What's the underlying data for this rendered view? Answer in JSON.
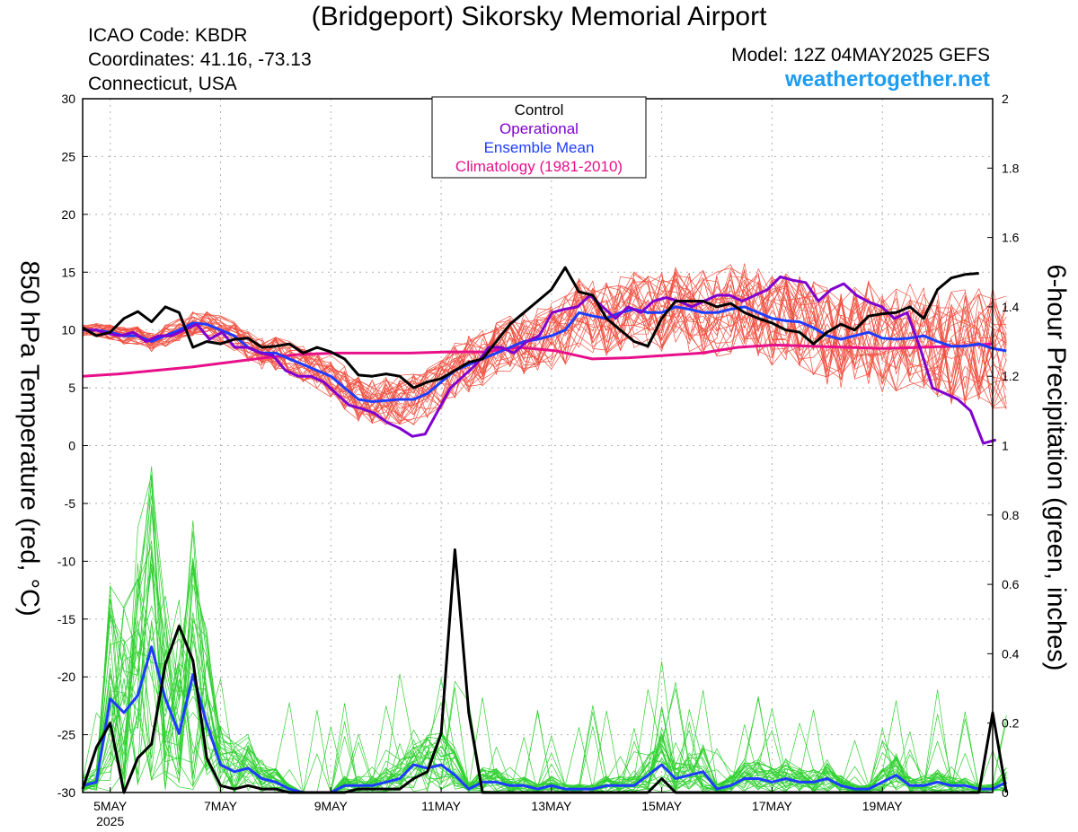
{
  "header": {
    "title": "(Bridgeport) Sikorsky Memorial Airport",
    "icao": "ICAO Code: KBDR",
    "coords": "Coordinates: 41.16, -73.13",
    "region": "Connecticut, USA",
    "model": "Model: 12Z 04MAY2025 GEFS",
    "website": "weathertogether.net"
  },
  "colors": {
    "control": "#000000",
    "operational": "#8000d0",
    "ensemble_mean": "#1e3cff",
    "climatology": "#e8108a",
    "members_temp": "#f05040",
    "members_precip": "#30d030",
    "website": "#1e9cf0"
  },
  "chart_data": {
    "type": "line",
    "title": "(Bridgeport) Sikorsky Memorial Airport",
    "ylabel": "850 hPa Temperature (red, °C)",
    "y2label": "6-hour Precipitation (green, inches)",
    "xlabel": "",
    "x_unit": "days since 12Z 04MAY2025 (6-hourly)",
    "xlim": [
      0,
      16.5
    ],
    "ylim": [
      -30,
      30
    ],
    "y2lim": [
      0,
      2
    ],
    "grid": true,
    "legend_position": "top-center",
    "legend": [
      "Control",
      "Operational",
      "Ensemble Mean",
      "Climatology (1981-2010)"
    ],
    "x_ticks": [
      {
        "x": 0.5,
        "label": "5MAY",
        "sublabel": "2025"
      },
      {
        "x": 2.5,
        "label": "7MAY",
        "sublabel": ""
      },
      {
        "x": 4.5,
        "label": "9MAY",
        "sublabel": ""
      },
      {
        "x": 6.5,
        "label": "11MAY",
        "sublabel": ""
      },
      {
        "x": 8.5,
        "label": "13MAY",
        "sublabel": ""
      },
      {
        "x": 10.5,
        "label": "15MAY",
        "sublabel": ""
      },
      {
        "x": 12.5,
        "label": "17MAY",
        "sublabel": ""
      },
      {
        "x": 14.5,
        "label": "19MAY",
        "sublabel": ""
      }
    ],
    "y_ticks": [
      "30",
      "25",
      "20",
      "15",
      "10",
      "5",
      "0",
      "-5",
      "-10",
      "-15",
      "-20",
      "-25",
      "-30"
    ],
    "y2_ticks": [
      "2",
      "1.8",
      "1.6",
      "1.4",
      "1.2",
      "1",
      "0.8",
      "0.6",
      "0.4",
      "0.2",
      "0"
    ],
    "temperature_series": [
      {
        "name": "Control",
        "values": [
          10.2,
          9.5,
          9.8,
          11,
          11.6,
          10.7,
          12,
          11.5,
          8.5,
          9,
          8.8,
          9.2,
          9.3,
          8.5,
          8.6,
          8.8,
          8,
          8.5,
          8.1,
          7.5,
          6.1,
          6,
          6.2,
          6,
          5,
          5.5,
          5.8,
          6.5,
          7.2,
          7.5,
          9,
          10.5,
          11.5,
          12.5,
          13.5,
          15.4,
          13.3,
          13,
          11,
          10,
          9,
          8.6,
          11,
          12.5,
          12.5,
          12.5,
          12,
          12.3,
          11.5,
          11,
          10.6,
          10,
          9.8,
          8.8,
          9.8,
          10.5,
          10,
          11.2,
          11.4,
          11.5,
          12,
          11,
          13.5,
          14.5,
          14.8,
          14.9
        ]
      },
      {
        "name": "Operational",
        "values": [
          10,
          10,
          9.7,
          9.5,
          9.8,
          9,
          9.5,
          9.5,
          10,
          10.5,
          9.2,
          9.8,
          8.5,
          8.5,
          8,
          7.8,
          6.5,
          6,
          6,
          5.5,
          4.5,
          3.5,
          3.2,
          2.8,
          2,
          1.5,
          0.8,
          1,
          3,
          5,
          6,
          7,
          8.5,
          8.5,
          8,
          9,
          9.5,
          11.5,
          11.8,
          12,
          13,
          12,
          11,
          12,
          11.5,
          12.5,
          12.8,
          12.5,
          12,
          12.5,
          13,
          13,
          12.5,
          13,
          13.5,
          14.6,
          14.3,
          14.1,
          12.5,
          13.5,
          14,
          13,
          12.4,
          12,
          11,
          11.5,
          8.5,
          5,
          4.5,
          4,
          3,
          0.2,
          0.5
        ]
      },
      {
        "name": "Ensemble Mean",
        "values": [
          10,
          10,
          9.8,
          9.5,
          9.5,
          9,
          9.5,
          10,
          10.6,
          10.5,
          10,
          9.5,
          8.5,
          8,
          8,
          7.5,
          7,
          6.5,
          6,
          5,
          4,
          3.8,
          3.9,
          4,
          4,
          4.5,
          5.5,
          6.5,
          7,
          7.5,
          8,
          8.5,
          9,
          9.2,
          9.5,
          10,
          11.5,
          11.2,
          11,
          11.5,
          11.8,
          11.5,
          11.5,
          12,
          11.8,
          11.5,
          11.5,
          11.8,
          12,
          11.5,
          11,
          10.8,
          10.7,
          10.2,
          9.5,
          9.2,
          9.5,
          9.8,
          9.3,
          9.2,
          9.3,
          9.5,
          9,
          8.6,
          8.6,
          8.8,
          8.4,
          8.2
        ]
      },
      {
        "name": "Climatology (1981-2010)",
        "values": [
          6,
          6.2,
          6.5,
          6.8,
          7.2,
          7.6,
          7.9,
          8,
          8,
          8,
          8.1,
          8.1,
          8.5,
          8.2,
          7.5,
          7.6,
          7.8,
          8,
          8.5,
          8.7,
          8.6,
          8.5,
          8.4,
          8.5,
          8.6,
          8.8
        ]
      }
    ],
    "precip_series": [
      {
        "name": "Control",
        "values": [
          0.01,
          0.13,
          0.2,
          0,
          0.1,
          0.14,
          0.37,
          0.48,
          0.38,
          0.1,
          0.02,
          0.01,
          0.02,
          0.01,
          0.01,
          0,
          0,
          0,
          0,
          0,
          0.01,
          0.01,
          0.01,
          0.01,
          0.04,
          0.06,
          0.17,
          0.7,
          0.23,
          0,
          0,
          0,
          0,
          0,
          0,
          0,
          0,
          0,
          0,
          0,
          0,
          0,
          0.04,
          0,
          0,
          0,
          0,
          0,
          0,
          0,
          0,
          0,
          0,
          0,
          0,
          0,
          0,
          0,
          0,
          0,
          0,
          0,
          0,
          0,
          0,
          0,
          0.23,
          0
        ]
      },
      {
        "name": "Ensemble Mean",
        "values": [
          0.02,
          0.03,
          0.27,
          0.23,
          0.28,
          0.42,
          0.27,
          0.17,
          0.34,
          0.2,
          0.08,
          0.06,
          0.07,
          0.04,
          0.03,
          0.01,
          0,
          0,
          0,
          0.02,
          0.02,
          0.02,
          0.03,
          0.04,
          0.08,
          0.07,
          0.08,
          0.05,
          0.01,
          0.03,
          0.03,
          0.02,
          0.02,
          0.01,
          0.02,
          0.01,
          0.01,
          0.01,
          0.02,
          0.02,
          0.02,
          0.05,
          0.08,
          0.04,
          0.05,
          0.06,
          0.01,
          0.02,
          0.04,
          0.04,
          0.03,
          0.04,
          0.03,
          0.03,
          0.04,
          0.02,
          0.01,
          0.01,
          0.03,
          0.05,
          0.02,
          0.02,
          0.03,
          0.02,
          0.02,
          0.01,
          0.01,
          0.03
        ]
      }
    ]
  }
}
